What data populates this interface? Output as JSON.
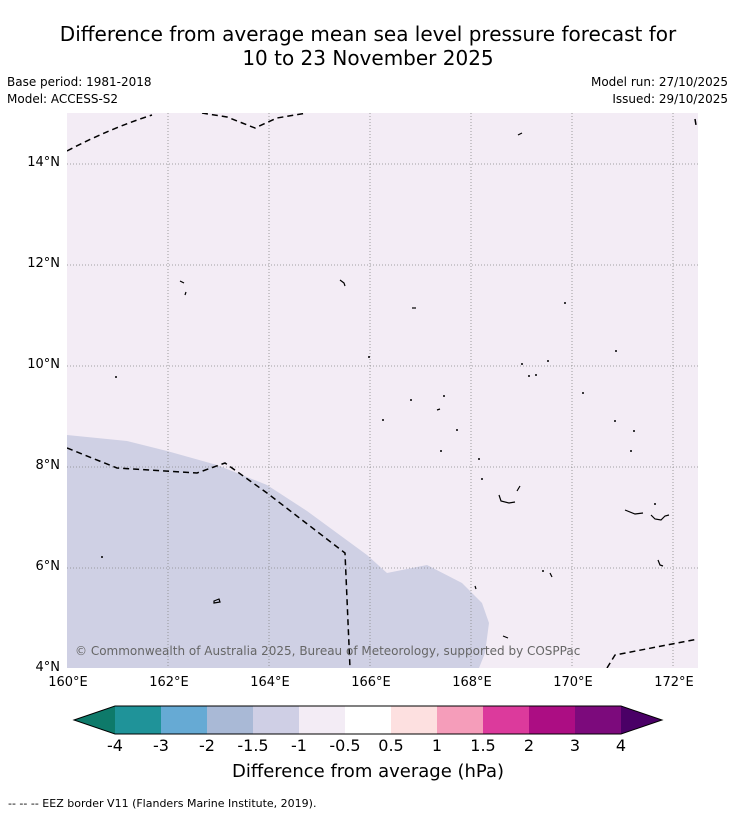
{
  "title_line1": "Difference from average mean sea level pressure forecast for",
  "title_line2": "10 to 23 November 2025",
  "base_period": "Base period: 1981-2018",
  "model": "Model: ACCESS-S2",
  "model_run": "Model run: 27/10/2025",
  "issued": "Issued: 29/10/2025",
  "copyright": "© Commonwealth of Australia 2025, Bureau of Meteorology, supported by COSPPac",
  "lat_labels": [
    "14°N",
    "12°N",
    "10°N",
    "8°N",
    "6°N",
    "4°N"
  ],
  "lon_labels": [
    "160°E",
    "162°E",
    "164°E",
    "166°E",
    "168°E",
    "170°E",
    "172°E"
  ],
  "colorbar": {
    "title": "Difference from average (hPa)",
    "tick_labels": [
      "-4",
      "-3",
      "-2",
      "-1.5",
      "-1",
      "-0.5",
      "0.5",
      "1",
      "1.5",
      "2",
      "3",
      "4"
    ],
    "colors": [
      "#0e7a6a",
      "#1f9399",
      "#66aad4",
      "#a9b9d6",
      "#cfcfe5",
      "#f3ecf5",
      "#ffffff",
      "#fde0e0",
      "#f59dba",
      "#dc3a9c",
      "#ac0d83",
      "#7c0a7c",
      "#4a0066"
    ]
  },
  "legend_text": "-- -- -- EEZ border V11 (Flanders Marine Institute, 2019).",
  "colors": {
    "background_field": "#f3ecf5",
    "negative_field": "#cfd0e4"
  }
}
